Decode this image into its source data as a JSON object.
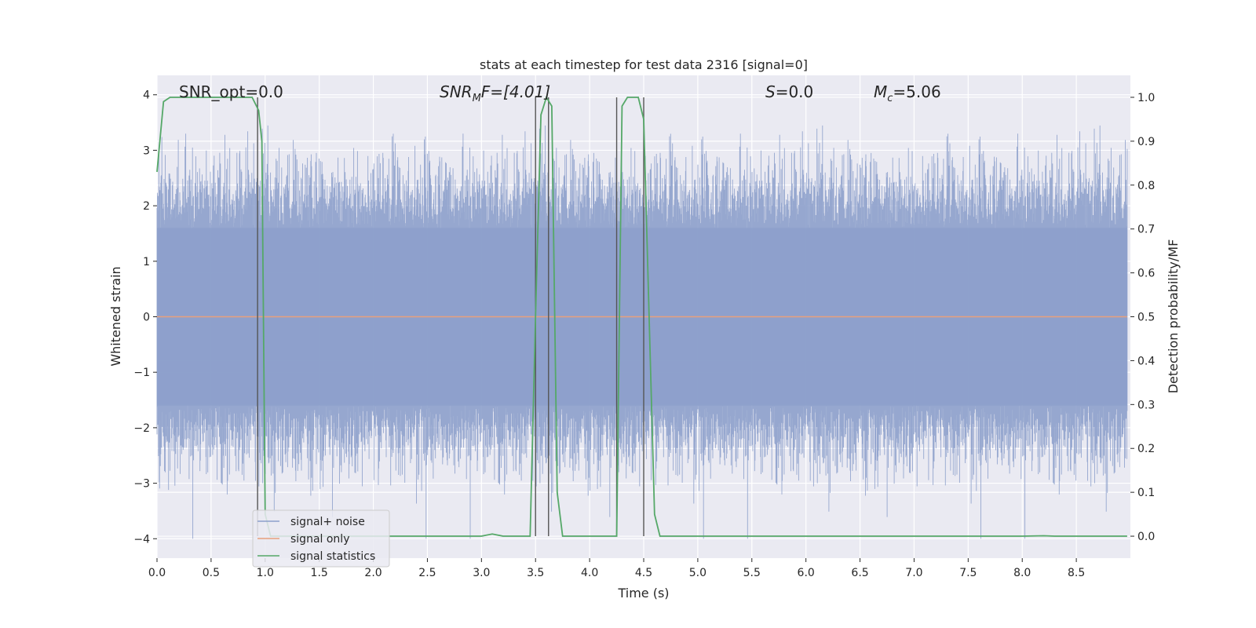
{
  "chart_data": {
    "type": "line",
    "title": "stats at each timestep for test data 2316 [signal=0]",
    "xlabel": "Time (s)",
    "ylabel_left": "Whitened strain",
    "ylabel_right": "Detection probability/MF",
    "xlim": [
      0.0,
      9.0
    ],
    "ylim_left": [
      -4.35,
      4.35
    ],
    "ylim_right": [
      -0.05,
      1.05
    ],
    "x_ticks": [
      0.0,
      0.5,
      1.0,
      1.5,
      2.0,
      2.5,
      3.0,
      3.5,
      4.0,
      4.5,
      5.0,
      5.5,
      6.0,
      6.5,
      7.0,
      7.5,
      8.0,
      8.5
    ],
    "x_tick_labels": [
      "0.0",
      "0.5",
      "1.0",
      "1.5",
      "2.0",
      "2.5",
      "3.0",
      "3.5",
      "4.0",
      "4.5",
      "5.0",
      "5.5",
      "6.0",
      "6.5",
      "7.0",
      "7.5",
      "8.0",
      "8.5"
    ],
    "y_left_ticks": [
      -4,
      -3,
      -2,
      -1,
      0,
      1,
      2,
      3,
      4
    ],
    "y_left_tick_labels": [
      "−4",
      "−3",
      "−2",
      "−1",
      "0",
      "1",
      "2",
      "3",
      "4"
    ],
    "y_right_ticks": [
      0.0,
      0.1,
      0.2,
      0.3,
      0.4,
      0.5,
      0.6,
      0.7,
      0.8,
      0.9,
      1.0
    ],
    "y_right_tick_labels": [
      "0.0",
      "0.1",
      "0.2",
      "0.3",
      "0.4",
      "0.5",
      "0.6",
      "0.7",
      "0.8",
      "0.9",
      "1.0"
    ],
    "grid": true,
    "legend_position": "lower-left",
    "annotations": [
      {
        "prefix": "SNR_opt=0.0",
        "sub": "",
        "suffix": ""
      },
      {
        "prefix": "SNR",
        "sub": "M",
        "suffix": "F=[4.01]"
      },
      {
        "prefix": "S",
        "sub": "",
        "suffix": "=0.0"
      },
      {
        "prefix": "M",
        "sub": "c",
        "suffix": "=5.06"
      }
    ],
    "noise_envelope": {
      "core_amplitude": 1.6,
      "peak_max": 4.0,
      "peak_min": -4.0
    },
    "series": [
      {
        "name": "signal+ noise",
        "color": "#8da0cb",
        "style": "noise band"
      },
      {
        "name": "signal only",
        "color": "#e8a07c",
        "values_constant": 0.0
      },
      {
        "name": "signal statistics",
        "color": "#55a868",
        "x": [
          0.0,
          0.06,
          0.12,
          0.3,
          0.5,
          0.7,
          0.88,
          0.94,
          0.97,
          1.0,
          1.05,
          1.1,
          1.5,
          2.0,
          2.5,
          3.0,
          3.1,
          3.2,
          3.35,
          3.45,
          3.5,
          3.55,
          3.6,
          3.65,
          3.7,
          3.75,
          3.8,
          4.0,
          4.2,
          4.25,
          4.3,
          4.35,
          4.45,
          4.5,
          4.55,
          4.6,
          4.65,
          5.0,
          6.0,
          7.0,
          8.0,
          8.2,
          8.3,
          8.6,
          8.97
        ],
        "y": [
          0.83,
          0.99,
          1.0,
          1.0,
          1.0,
          1.0,
          1.0,
          0.97,
          0.9,
          0.05,
          0.0,
          0.0,
          0.0,
          0.0,
          0.0,
          0.0,
          0.005,
          0.0,
          0.0,
          0.0,
          0.5,
          0.96,
          1.0,
          0.98,
          0.1,
          0.0,
          0.0,
          0.0,
          0.0,
          0.0,
          0.98,
          1.0,
          1.0,
          0.95,
          0.5,
          0.05,
          0.0,
          0.0,
          0.0,
          0.0,
          0.0,
          0.001,
          0.0,
          0.0,
          0.0
        ]
      }
    ],
    "vertical_markers": [
      0.93,
      3.5,
      3.62,
      4.25,
      4.5
    ]
  }
}
